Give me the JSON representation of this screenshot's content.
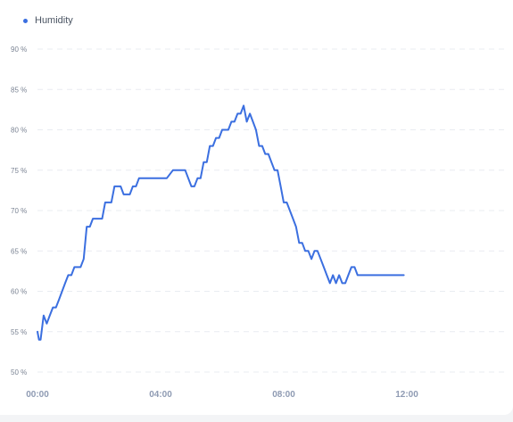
{
  "colors": {
    "series": "#3b6fe0",
    "grid": "#e9ecf1"
  },
  "legend": {
    "label": "Humidity"
  },
  "chart_data": {
    "type": "line",
    "grid": true,
    "legend_position": "top-left",
    "x_unit": "hours",
    "xlim": [
      0,
      15
    ],
    "ylim": [
      50,
      90
    ],
    "x_ticks": [
      {
        "value": 0,
        "label": "00:00"
      },
      {
        "value": 4,
        "label": "04:00"
      },
      {
        "value": 8,
        "label": "08:00"
      },
      {
        "value": 12,
        "label": "12:00"
      }
    ],
    "y_ticks": [
      {
        "value": 90,
        "label": "90 %"
      },
      {
        "value": 85,
        "label": "85 %"
      },
      {
        "value": 80,
        "label": "80 %"
      },
      {
        "value": 75,
        "label": "75 %"
      },
      {
        "value": 70,
        "label": "70 %"
      },
      {
        "value": 65,
        "label": "65 %"
      },
      {
        "value": 60,
        "label": "60 %"
      },
      {
        "value": 55,
        "label": "55 %"
      },
      {
        "value": 50,
        "label": "50 %"
      }
    ],
    "series": [
      {
        "name": "Humidity",
        "x": [
          0.0,
          0.05,
          0.1,
          0.2,
          0.3,
          0.4,
          0.5,
          0.6,
          0.7,
          0.8,
          0.9,
          1.0,
          1.1,
          1.2,
          1.3,
          1.4,
          1.5,
          1.6,
          1.7,
          1.8,
          1.9,
          2.0,
          2.1,
          2.2,
          2.3,
          2.4,
          2.5,
          2.6,
          2.7,
          2.8,
          2.9,
          3.0,
          3.1,
          3.2,
          3.3,
          3.4,
          3.5,
          3.6,
          3.7,
          3.8,
          3.9,
          4.0,
          4.2,
          4.4,
          4.6,
          4.8,
          5.0,
          5.1,
          5.2,
          5.3,
          5.4,
          5.5,
          5.6,
          5.7,
          5.8,
          5.9,
          6.0,
          6.1,
          6.2,
          6.3,
          6.4,
          6.5,
          6.6,
          6.7,
          6.8,
          6.9,
          7.0,
          7.1,
          7.2,
          7.3,
          7.4,
          7.5,
          7.6,
          7.7,
          7.8,
          7.9,
          8.0,
          8.1,
          8.2,
          8.3,
          8.4,
          8.5,
          8.6,
          8.7,
          8.8,
          8.9,
          9.0,
          9.1,
          9.2,
          9.3,
          9.4,
          9.5,
          9.6,
          9.7,
          9.8,
          9.9,
          10.0,
          10.1,
          10.2,
          10.3,
          10.4,
          10.5,
          10.6,
          10.7,
          10.8,
          10.9,
          11.0,
          11.1,
          11.2,
          11.3,
          11.4,
          11.5,
          11.6,
          11.7,
          11.8,
          11.9
        ],
        "values": [
          55,
          54,
          54,
          57,
          56,
          57,
          58,
          58,
          59,
          60,
          61,
          62,
          62,
          63,
          63,
          63,
          64,
          68,
          68,
          69,
          69,
          69,
          69,
          71,
          71,
          71,
          73,
          73,
          73,
          72,
          72,
          72,
          73,
          73,
          74,
          74,
          74,
          74,
          74,
          74,
          74,
          74,
          74,
          75,
          75,
          75,
          73,
          73,
          74,
          74,
          76,
          76,
          78,
          78,
          79,
          79,
          80,
          80,
          80,
          81,
          81,
          82,
          82,
          83,
          81,
          82,
          81,
          80,
          78,
          78,
          77,
          77,
          76,
          75,
          75,
          73,
          71,
          71,
          70,
          69,
          68,
          66,
          66,
          65,
          65,
          64,
          65,
          65,
          64,
          63,
          62,
          61,
          62,
          61,
          62,
          61,
          61,
          62,
          63,
          63,
          62,
          62,
          62,
          62,
          62,
          62,
          62,
          62,
          62,
          62,
          62,
          62,
          62,
          62,
          62,
          62
        ]
      }
    ]
  }
}
